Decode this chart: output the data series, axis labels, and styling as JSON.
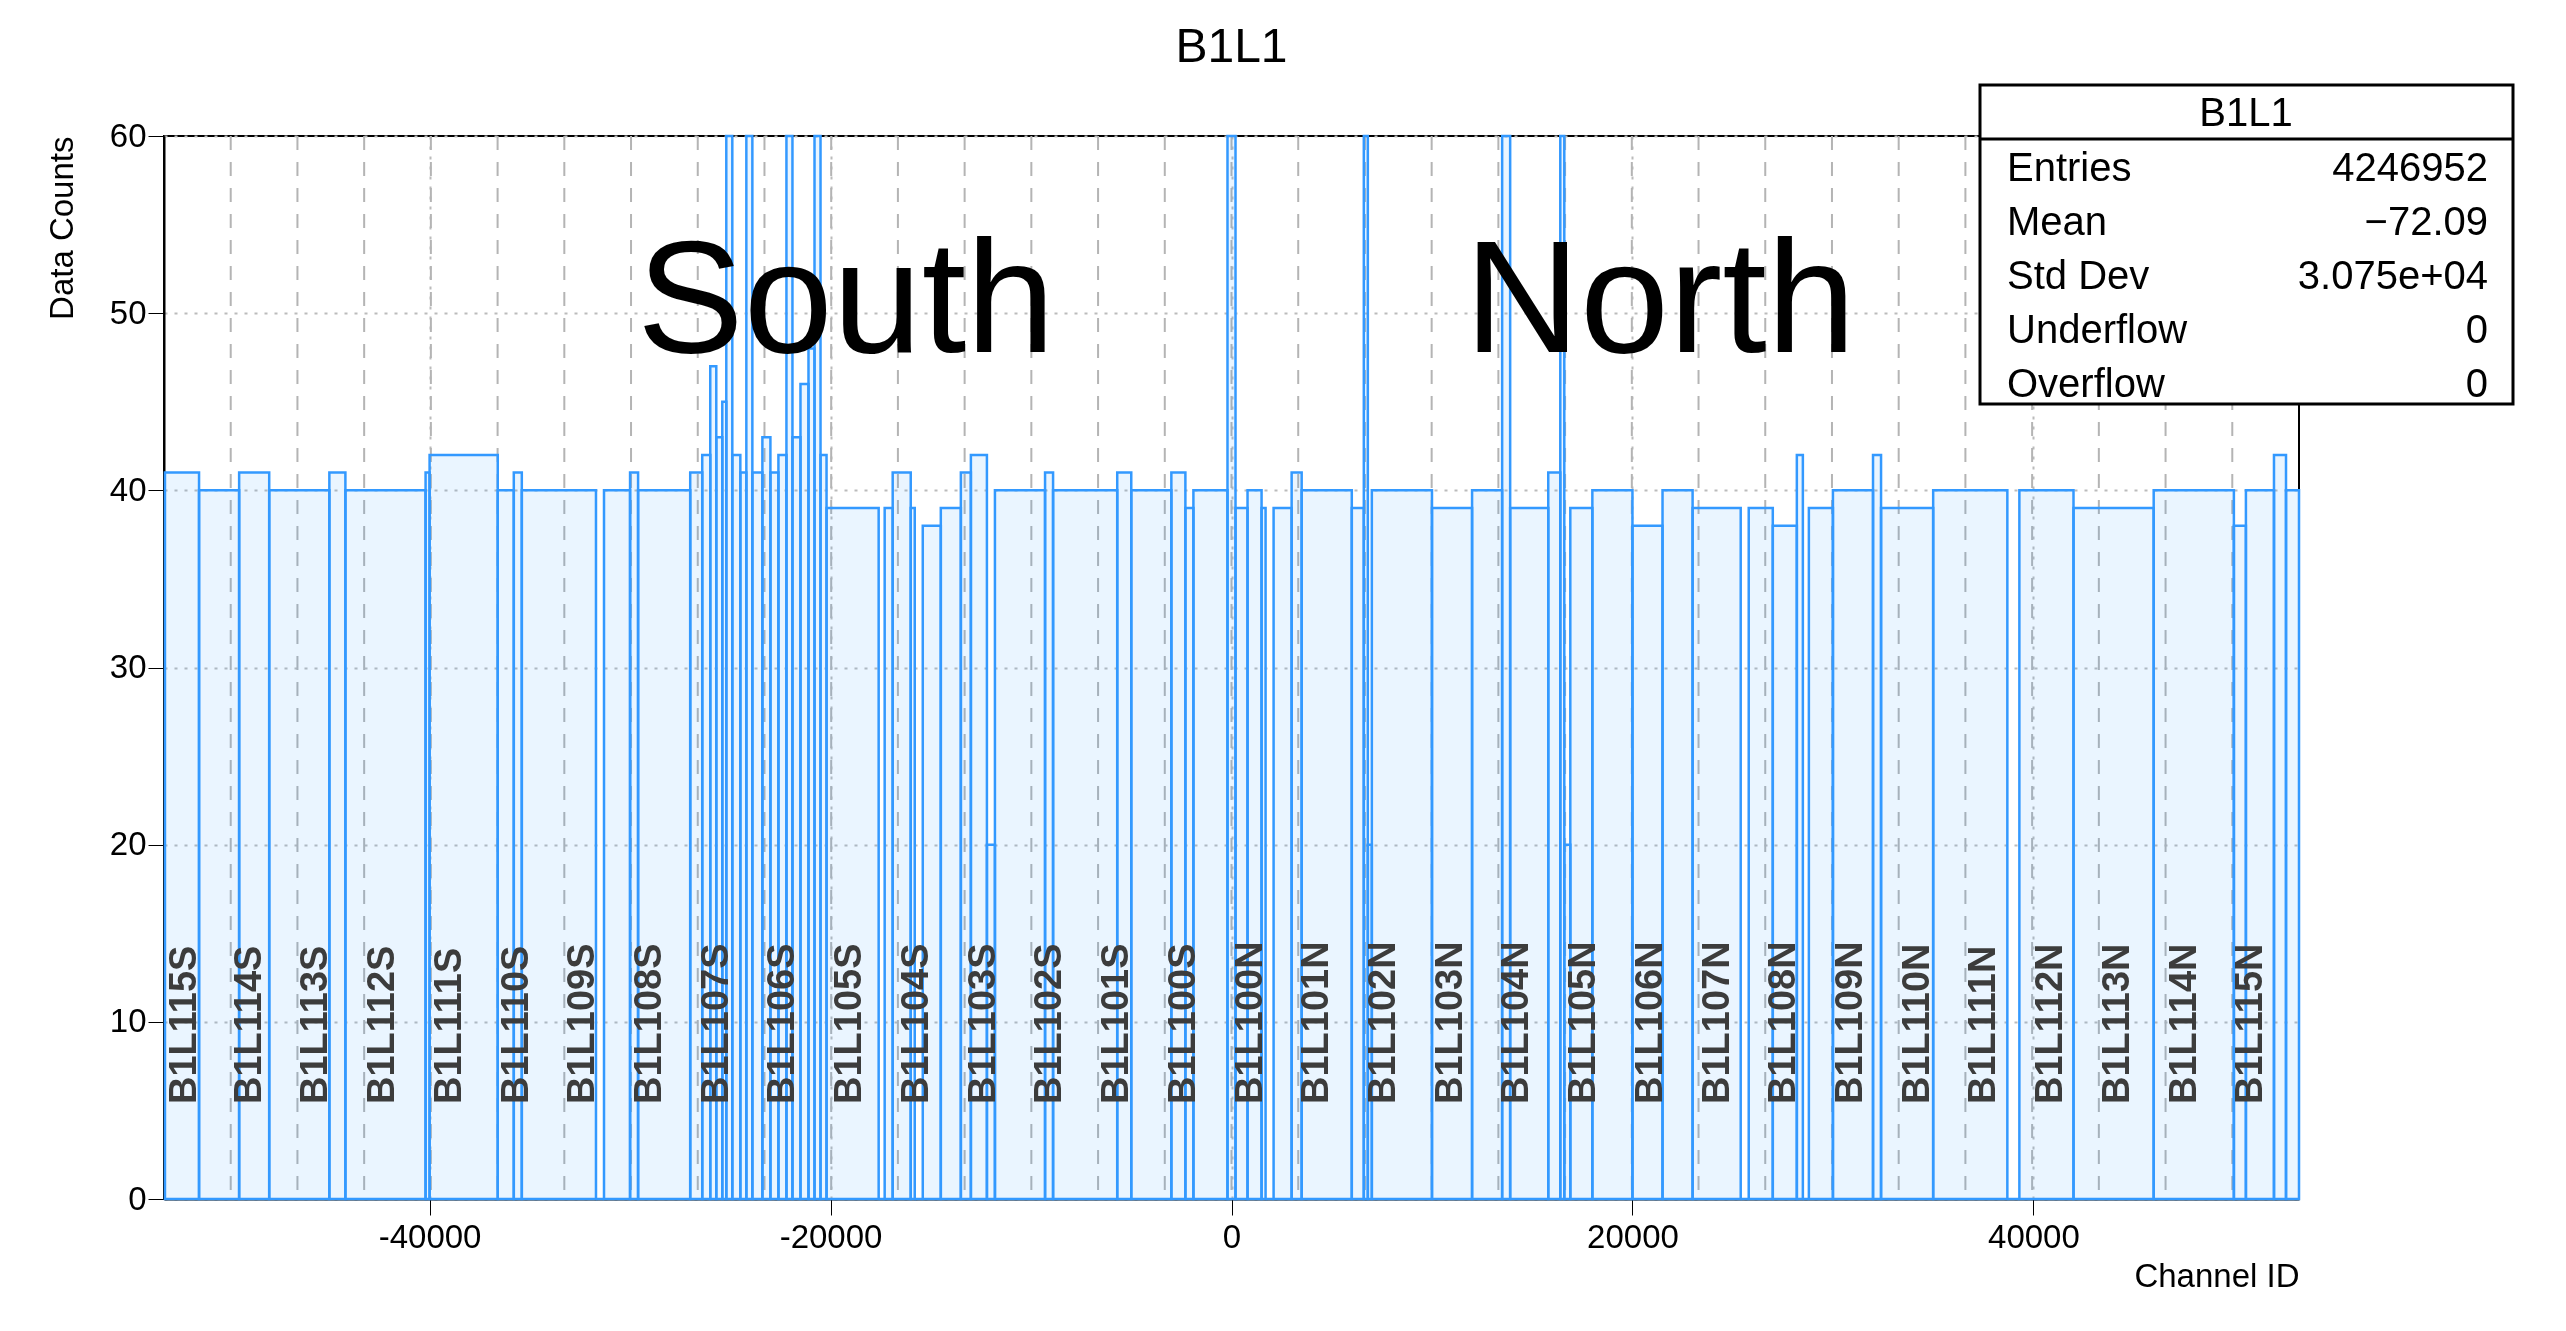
{
  "chart_data": {
    "type": "histogram",
    "title": "B1L1",
    "xlabel": "Channel ID",
    "ylabel": "Data Counts",
    "color": "#3399ff",
    "bins": [
      -53200,
      -51500,
      -49500,
      -48000,
      -45000,
      -44200,
      -40200,
      -40000,
      -36600,
      -35800,
      -35400,
      -31700,
      -31300,
      -30000,
      -29600,
      -27000,
      -26400,
      -26000,
      -25700,
      -25400,
      -25200,
      -24900,
      -24500,
      -24200,
      -23900,
      -23400,
      -23000,
      -22600,
      -22200,
      -21900,
      -21500,
      -21100,
      -20800,
      -20500,
      -20200,
      -17600,
      -17300,
      -16900,
      -16000,
      -15800,
      -15400,
      -14500,
      -13500,
      -13000,
      -12200,
      -11800,
      -9300,
      -8900,
      -5700,
      -5000,
      -3000,
      -2300,
      -1900,
      -200,
      200,
      800,
      1500,
      1700,
      2100,
      3000,
      3500,
      6000,
      6600,
      6800,
      7000,
      10000,
      12000,
      13500,
      13900,
      15800,
      16400,
      16600,
      16900,
      18000,
      20000,
      21500,
      23000,
      25400,
      25800,
      27000,
      28200,
      28500,
      28800,
      30000,
      32000,
      32400,
      35000,
      38700,
      39300,
      42000,
      46000,
      50000,
      50600,
      52000,
      52600,
      53248
    ],
    "values": [
      41,
      40,
      41,
      40,
      41,
      40,
      41,
      42,
      40,
      41,
      40,
      0,
      40,
      41,
      40,
      41,
      42,
      47,
      43,
      45,
      60,
      42,
      41,
      60,
      41,
      43,
      41,
      42,
      60,
      43,
      46,
      48,
      60,
      42,
      39,
      0,
      39,
      41,
      39,
      0,
      38,
      39,
      41,
      42,
      20,
      40,
      41,
      40,
      41,
      40,
      41,
      39,
      40,
      60,
      39,
      40,
      39,
      0,
      39,
      41,
      40,
      39,
      60,
      20,
      40,
      39,
      40,
      60,
      39,
      41,
      60,
      20,
      39,
      40,
      38,
      40,
      39,
      0,
      39,
      38,
      42,
      0,
      39,
      40,
      42,
      39,
      40,
      0,
      40,
      39,
      40,
      38,
      40,
      42,
      40
    ],
    "xlim": [
      -53248,
      53248
    ],
    "xticks": [
      -40000,
      -20000,
      0,
      20000,
      40000
    ],
    "ylim": [
      0,
      60
    ],
    "yticks": [
      0,
      10,
      20,
      30,
      40,
      50,
      60
    ],
    "grid": true,
    "ref_lines": [
      {
        "axis": "x",
        "value": -49920,
        "label": "B1L114S",
        "color": "#b4b4b4",
        "line_style": "dashed"
      },
      {
        "axis": "x",
        "value": -46592,
        "label": "B1L113S",
        "color": "#b4b4b4",
        "line_style": "dashed"
      },
      {
        "axis": "x",
        "value": -43264,
        "label": "B1L112S",
        "color": "#b4b4b4",
        "line_style": "dashed"
      },
      {
        "axis": "x",
        "value": -39936,
        "label": "B1L111S",
        "color": "#b4b4b4",
        "line_style": "dashed"
      },
      {
        "axis": "x",
        "value": -36608,
        "label": "B1L110S",
        "color": "#b4b4b4",
        "line_style": "dashed"
      },
      {
        "axis": "x",
        "value": -33280,
        "label": "B1L109S",
        "color": "#b4b4b4",
        "line_style": "dashed"
      },
      {
        "axis": "x",
        "value": -29952,
        "label": "B1L108S",
        "color": "#b4b4b4",
        "line_style": "dashed"
      },
      {
        "axis": "x",
        "value": -26624,
        "label": "B1L107S",
        "color": "#b4b4b4",
        "line_style": "dashed"
      },
      {
        "axis": "x",
        "value": -23296,
        "label": "B1L106S",
        "color": "#b4b4b4",
        "line_style": "dashed"
      },
      {
        "axis": "x",
        "value": -19968,
        "label": "B1L105S",
        "color": "#b4b4b4",
        "line_style": "dashed"
      },
      {
        "axis": "x",
        "value": -16640,
        "label": "B1L104S",
        "color": "#b4b4b4",
        "line_style": "dashed"
      },
      {
        "axis": "x",
        "value": -13312,
        "label": "B1L103S",
        "color": "#b4b4b4",
        "line_style": "dashed"
      },
      {
        "axis": "x",
        "value": -9984,
        "label": "B1L102S",
        "color": "#b4b4b4",
        "line_style": "dashed"
      },
      {
        "axis": "x",
        "value": -6656,
        "label": "B1L101S",
        "color": "#b4b4b4",
        "line_style": "dashed"
      },
      {
        "axis": "x",
        "value": -3328,
        "label": "B1L100S",
        "color": "#b4b4b4",
        "line_style": "dashed"
      },
      {
        "axis": "x",
        "value": 0,
        "label": "B1L100N",
        "color": "#b4b4b4",
        "line_style": "dashed"
      },
      {
        "axis": "x",
        "value": 3328,
        "label": "B1L101N",
        "color": "#b4b4b4",
        "line_style": "dashed"
      },
      {
        "axis": "x",
        "value": 6656,
        "label": "B1L102N",
        "color": "#b4b4b4",
        "line_style": "dashed"
      },
      {
        "axis": "x",
        "value": 9984,
        "label": "B1L103N",
        "color": "#b4b4b4",
        "line_style": "dashed"
      },
      {
        "axis": "x",
        "value": 13312,
        "label": "B1L104N",
        "color": "#b4b4b4",
        "line_style": "dashed"
      },
      {
        "axis": "x",
        "value": 16640,
        "label": "B1L105N",
        "color": "#b4b4b4",
        "line_style": "dashed"
      },
      {
        "axis": "x",
        "value": 19968,
        "label": "B1L106N",
        "color": "#b4b4b4",
        "line_style": "dashed"
      },
      {
        "axis": "x",
        "value": 23296,
        "label": "B1L107N",
        "color": "#b4b4b4",
        "line_style": "dashed"
      },
      {
        "axis": "x",
        "value": 26624,
        "label": "B1L108N",
        "color": "#b4b4b4",
        "line_style": "dashed"
      },
      {
        "axis": "x",
        "value": 29952,
        "label": "B1L109N",
        "color": "#b4b4b4",
        "line_style": "dashed"
      },
      {
        "axis": "x",
        "value": 33280,
        "label": "B1L110N",
        "color": "#b4b4b4",
        "line_style": "dashed"
      },
      {
        "axis": "x",
        "value": 36608,
        "label": "B1L111N",
        "color": "#b4b4b4",
        "line_style": "dashed"
      },
      {
        "axis": "x",
        "value": 39936,
        "label": "B1L112N",
        "color": "#b4b4b4",
        "line_style": "dashed"
      },
      {
        "axis": "x",
        "value": 43264,
        "label": "B1L113N",
        "color": "#b4b4b4",
        "line_style": "dashed"
      },
      {
        "axis": "x",
        "value": 46592,
        "label": "B1L114N",
        "color": "#b4b4b4",
        "line_style": "dashed"
      },
      {
        "axis": "x",
        "value": 49920,
        "label": "B1L115N",
        "color": "#b4b4b4",
        "line_style": "dashed"
      }
    ],
    "annotations": [
      "South",
      "North",
      "B1L1",
      "Entries",
      "4246952",
      "Mean",
      "−72.09",
      "Std Dev",
      "3.075e+04",
      "Underflow",
      "0",
      "Overflow",
      "0",
      "B1L115S"
    ]
  }
}
